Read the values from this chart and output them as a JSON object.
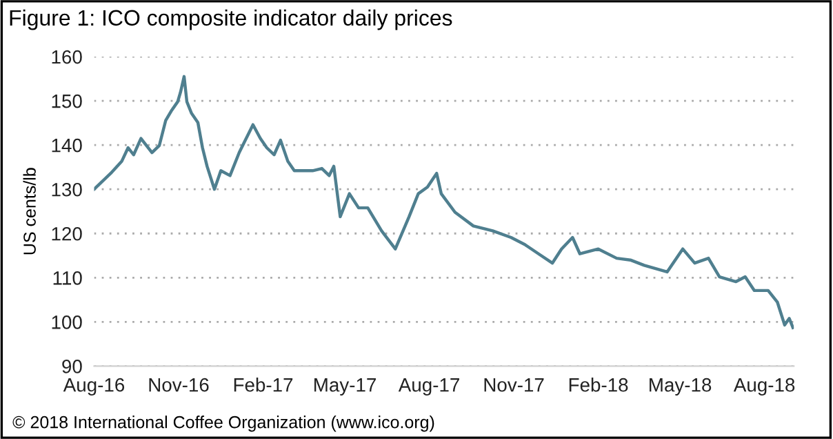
{
  "chart_data": {
    "type": "line",
    "title": "Figure 1: ICO composite indicator daily prices",
    "ylabel": "US cents/lb",
    "annotations": [
      "© 2018 International Coffee Organization (www.ico.org)"
    ],
    "x": [
      "2016-08-01",
      "2016-08-19",
      "2016-08-31",
      "2016-09-07",
      "2016-09-13",
      "2016-09-21",
      "2016-09-27",
      "2016-10-03",
      "2016-10-11",
      "2016-10-18",
      "2016-10-24",
      "2016-10-31",
      "2016-11-03",
      "2016-11-07",
      "2016-11-10",
      "2016-11-15",
      "2016-11-22",
      "2016-11-27",
      "2016-12-02",
      "2016-12-10",
      "2016-12-17",
      "2016-12-27",
      "2017-01-06",
      "2017-01-11",
      "2017-01-21",
      "2017-01-29",
      "2017-02-05",
      "2017-02-13",
      "2017-02-20",
      "2017-02-28",
      "2017-03-07",
      "2017-03-17",
      "2017-03-27",
      "2017-04-06",
      "2017-04-14",
      "2017-04-19",
      "2017-04-26",
      "2017-05-06",
      "2017-05-16",
      "2017-05-26",
      "2017-06-10",
      "2017-06-25",
      "2017-07-10",
      "2017-07-20",
      "2017-07-30",
      "2017-08-09",
      "2017-08-14",
      "2017-08-29",
      "2017-09-18",
      "2017-10-09",
      "2017-10-29",
      "2017-11-13",
      "2017-11-28",
      "2017-12-13",
      "2017-12-23",
      "2018-01-04",
      "2018-01-12",
      "2018-02-01",
      "2018-02-21",
      "2018-03-08",
      "2018-03-23",
      "2018-04-17",
      "2018-05-04",
      "2018-05-17",
      "2018-06-01",
      "2018-06-13",
      "2018-07-01",
      "2018-07-11",
      "2018-07-21",
      "2018-08-05",
      "2018-08-15",
      "2018-08-23",
      "2018-08-28",
      "2018-09-01"
    ],
    "series": [
      {
        "color": "#4f7f8f",
        "values": [
          130,
          133.6,
          136.3,
          139.4,
          137.8,
          141.5,
          139.9,
          138.3,
          139.9,
          145.6,
          147.7,
          149.8,
          151.9,
          155.5,
          149.8,
          147.2,
          145.1,
          139.4,
          135.2,
          130,
          134.2,
          133.1,
          138.3,
          140.4,
          144.6,
          141.5,
          139.4,
          137.8,
          141.1,
          136.3,
          134.2,
          134.2,
          134.2,
          134.7,
          133.1,
          135.2,
          123.8,
          129,
          125.8,
          125.8,
          120.6,
          116.5,
          123.8,
          129,
          130.5,
          133.6,
          129,
          124.8,
          121.7,
          120.6,
          119.1,
          117.5,
          115.4,
          113.3,
          116.5,
          119.1,
          115.4,
          116.5,
          114.4,
          114,
          112.8,
          111.3,
          116.5,
          113.3,
          114.4,
          110.2,
          109.1,
          110.2,
          107.1,
          107.1,
          104.5,
          99.3,
          100.8,
          98.7
        ]
      }
    ],
    "xlim": [
      "2016-08-01",
      "2018-09-02"
    ],
    "xticks": [
      {
        "value": "2016-08-01",
        "label": "Aug-16"
      },
      {
        "value": "2016-11-01",
        "label": "Nov-16"
      },
      {
        "value": "2017-02-01",
        "label": "Feb-17"
      },
      {
        "value": "2017-05-01",
        "label": "May-17"
      },
      {
        "value": "2017-08-01",
        "label": "Aug-17"
      },
      {
        "value": "2017-11-01",
        "label": "Nov-17"
      },
      {
        "value": "2018-02-01",
        "label": "Feb-18"
      },
      {
        "value": "2018-05-01",
        "label": "May-18"
      },
      {
        "value": "2018-08-01",
        "label": "Aug-18"
      }
    ],
    "ylim": [
      90,
      160
    ],
    "yticks": [
      90,
      100,
      110,
      120,
      130,
      140,
      150,
      160
    ],
    "grid": "y",
    "marker": "none",
    "line_style": "solid"
  }
}
